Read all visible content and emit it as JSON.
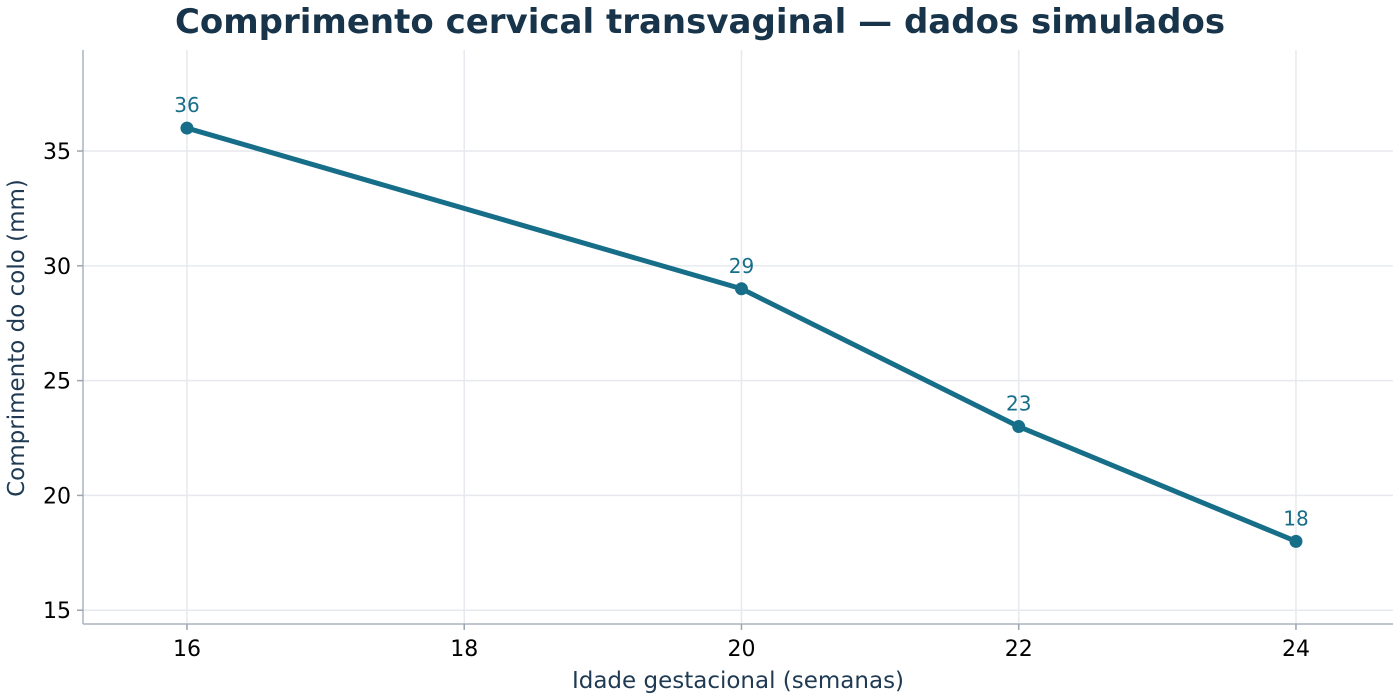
{
  "chart_data": {
    "type": "line",
    "title": "Comprimento cervical transvaginal — dados simulados",
    "xlabel": "Idade gestacional (semanas)",
    "ylabel": "Comprimento do colo (mm)",
    "x": [
      16,
      20,
      22,
      24
    ],
    "series": [
      {
        "values": [
          36,
          29,
          23,
          18
        ],
        "data_labels": [
          "36",
          "29",
          "23",
          "18"
        ],
        "color": "#176e89"
      }
    ],
    "xlim": [
      15.25,
      24.7
    ],
    "ylim": [
      14.4,
      39.4
    ],
    "x_ticks": [
      16,
      18,
      20,
      22,
      24
    ],
    "x_tick_labels": [
      "16",
      "18",
      "20",
      "22",
      "24"
    ],
    "y_ticks": [
      15,
      20,
      25,
      30,
      35
    ],
    "y_tick_labels": [
      "15",
      "20",
      "25",
      "30",
      "35"
    ],
    "grid": true,
    "legend": "none"
  }
}
